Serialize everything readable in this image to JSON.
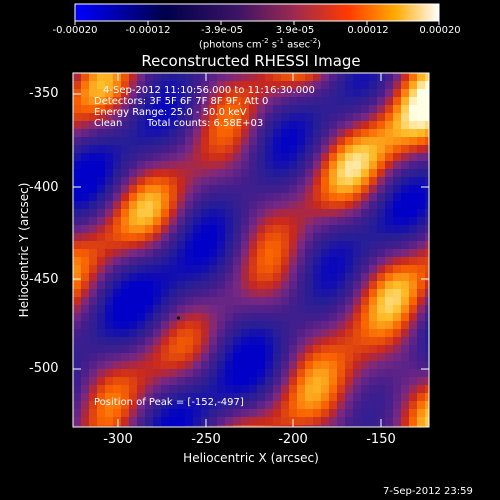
{
  "colorbar": {
    "tick_labels": [
      "-0.00020",
      "-0.00012",
      "-3.9e-05",
      "3.9e-05",
      "0.00012",
      "0.00020"
    ],
    "units_prefix": "(photons cm",
    "units_exp1": "-2",
    "units_mid": " s",
    "units_exp2": "-1",
    "units_suffix": " asec",
    "units_exp3": "-2",
    "units_close": ")",
    "colormap": "blue-black-purple-red-yellow-white"
  },
  "image": {
    "title": "Reconstructed RHESSI Image",
    "time_range": "4-Sep-2012 11:10:56.000 to 11:16:30.000",
    "detectors": "Detectors: 3F 5F 6F 7F 8F 9F, Att 0",
    "energy_range": "Energy Range: 25.0 - 50.0 keV",
    "method": "Clean",
    "total_counts": "Total counts: 6.58E+03",
    "peak_position": "Position of Peak = [-152,-497]",
    "x_axis_label": "Heliocentric X (arcsec)",
    "y_axis_label": "Heliocentric Y (arcsec)",
    "x_ticks": [
      "-300",
      "-250",
      "-200",
      "-150"
    ],
    "y_ticks": [
      "-350",
      "-400",
      "-450",
      "-500"
    ],
    "x_range": [
      -322,
      -127
    ],
    "y_range": [
      -528,
      -333
    ]
  },
  "footer": {
    "timestamp": "7-Sep-2012 23:59"
  }
}
